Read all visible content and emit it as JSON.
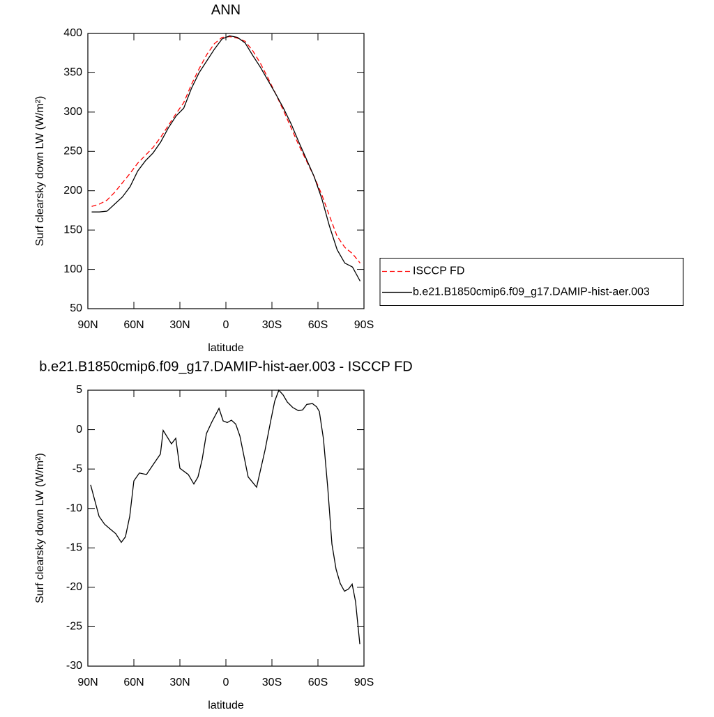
{
  "chart_data": [
    {
      "type": "line",
      "title": "ANN",
      "xlabel": "latitude",
      "ylabel": "Surf clearsky down LW (W/m²)",
      "x": [
        87.5,
        82.5,
        77.5,
        72.5,
        67.5,
        62.5,
        57.5,
        52.5,
        47.5,
        42.5,
        37.5,
        32.5,
        27.5,
        22.5,
        17.5,
        12.5,
        7.5,
        2.5,
        -2.5,
        -7.5,
        -12.5,
        -17.5,
        -22.5,
        -27.5,
        -32.5,
        -37.5,
        -42.5,
        -47.5,
        -52.5,
        -57.5,
        -62.5,
        -67.5,
        -72.5,
        -77.5,
        -82.5,
        -87.5
      ],
      "series": [
        {
          "name": "ISCCP FD",
          "color": "#ff0000",
          "line_style": "dashed",
          "values": [
            180,
            183,
            188,
            198,
            210,
            222,
            235,
            245,
            255,
            268,
            283,
            298,
            312,
            335,
            355,
            373,
            387,
            395,
            396,
            394,
            390,
            378,
            362,
            343,
            323,
            302,
            280,
            258,
            238,
            218,
            195,
            168,
            142,
            128,
            120,
            108
          ]
        },
        {
          "name": "b.e21.B1850cmip6.f09_g17.DAMIP-hist-aer.003",
          "color": "#000000",
          "line_style": "solid",
          "values": [
            173,
            173,
            174,
            183,
            192,
            205,
            225,
            238,
            248,
            262,
            280,
            295,
            305,
            330,
            350,
            365,
            380,
            393,
            397,
            395,
            388,
            372,
            357,
            340,
            323,
            305,
            285,
            262,
            240,
            218,
            190,
            155,
            125,
            108,
            103,
            85
          ]
        }
      ],
      "xlim": [
        90,
        -90
      ],
      "xticks": [
        {
          "value": 90,
          "label": "90N"
        },
        {
          "value": 60,
          "label": "60N"
        },
        {
          "value": 30,
          "label": "30N"
        },
        0,
        {
          "value": -30,
          "label": "30S"
        },
        {
          "value": -60,
          "label": "60S"
        },
        {
          "value": -90,
          "label": "90S"
        }
      ],
      "ylim": [
        50,
        400
      ],
      "yticks": [
        50,
        100,
        150,
        200,
        250,
        300,
        350,
        400
      ],
      "legend": "right"
    },
    {
      "type": "line",
      "title": "b.e21.B1850cmip6.f09_g17.DAMIP-hist-aer.003 - ISCCP FD",
      "xlabel": "latitude",
      "ylabel": "Surf clearsky down LW (W/m²)",
      "x": [
        88.2,
        82.7,
        79.1,
        75.5,
        71.8,
        68.2,
        65.5,
        62.7,
        60,
        56.4,
        51.8,
        47.3,
        42.7,
        40.9,
        35.5,
        32.7,
        30,
        24.5,
        20.9,
        18.2,
        15.5,
        12.7,
        9.1,
        4.5,
        1.8,
        -0.9,
        -3.6,
        -6.4,
        -9.1,
        -14.5,
        -20,
        -25.5,
        -29.1,
        -31.8,
        -34.5,
        -37.3,
        -40,
        -43.6,
        -47.3,
        -50,
        -52.7,
        -56.4,
        -59.1,
        -60.9,
        -63.6,
        -66.4,
        -69.1,
        -71.8,
        -74.5,
        -77.3,
        -80,
        -82.3,
        -84.5,
        -87.3
      ],
      "series": [
        {
          "color": "#000000",
          "line_style": "solid",
          "values": [
            -7.0,
            -11,
            -12,
            -12.6,
            -13.2,
            -14.3,
            -13.6,
            -11,
            -6.5,
            -5.5,
            -5.7,
            -4.4,
            -3.1,
            -0.1,
            -1.8,
            -1.1,
            -4.9,
            -5.7,
            -6.9,
            -6,
            -3.8,
            -0.5,
            1,
            2.7,
            1.1,
            0.9,
            1.2,
            0.7,
            -0.8,
            -6,
            -7.3,
            -2.6,
            1,
            3.6,
            5,
            4.4,
            3.5,
            2.8,
            2.4,
            2.5,
            3.2,
            3.3,
            2.9,
            2.3,
            -1.2,
            -7.4,
            -14.5,
            -17.7,
            -19.5,
            -20.5,
            -20.2,
            -19.6,
            -21.8,
            -27.2
          ]
        }
      ],
      "xlim": [
        90,
        -90
      ],
      "xticks": [
        {
          "value": 90,
          "label": "90N"
        },
        {
          "value": 60,
          "label": "60N"
        },
        {
          "value": 30,
          "label": "30N"
        },
        0,
        {
          "value": -30,
          "label": "30S"
        },
        {
          "value": -60,
          "label": "60S"
        },
        {
          "value": -90,
          "label": "90S"
        }
      ],
      "ylim": [
        -30,
        5
      ],
      "yticks": [
        -30,
        -25,
        -20,
        -15,
        -10,
        -5,
        0,
        5
      ]
    }
  ]
}
